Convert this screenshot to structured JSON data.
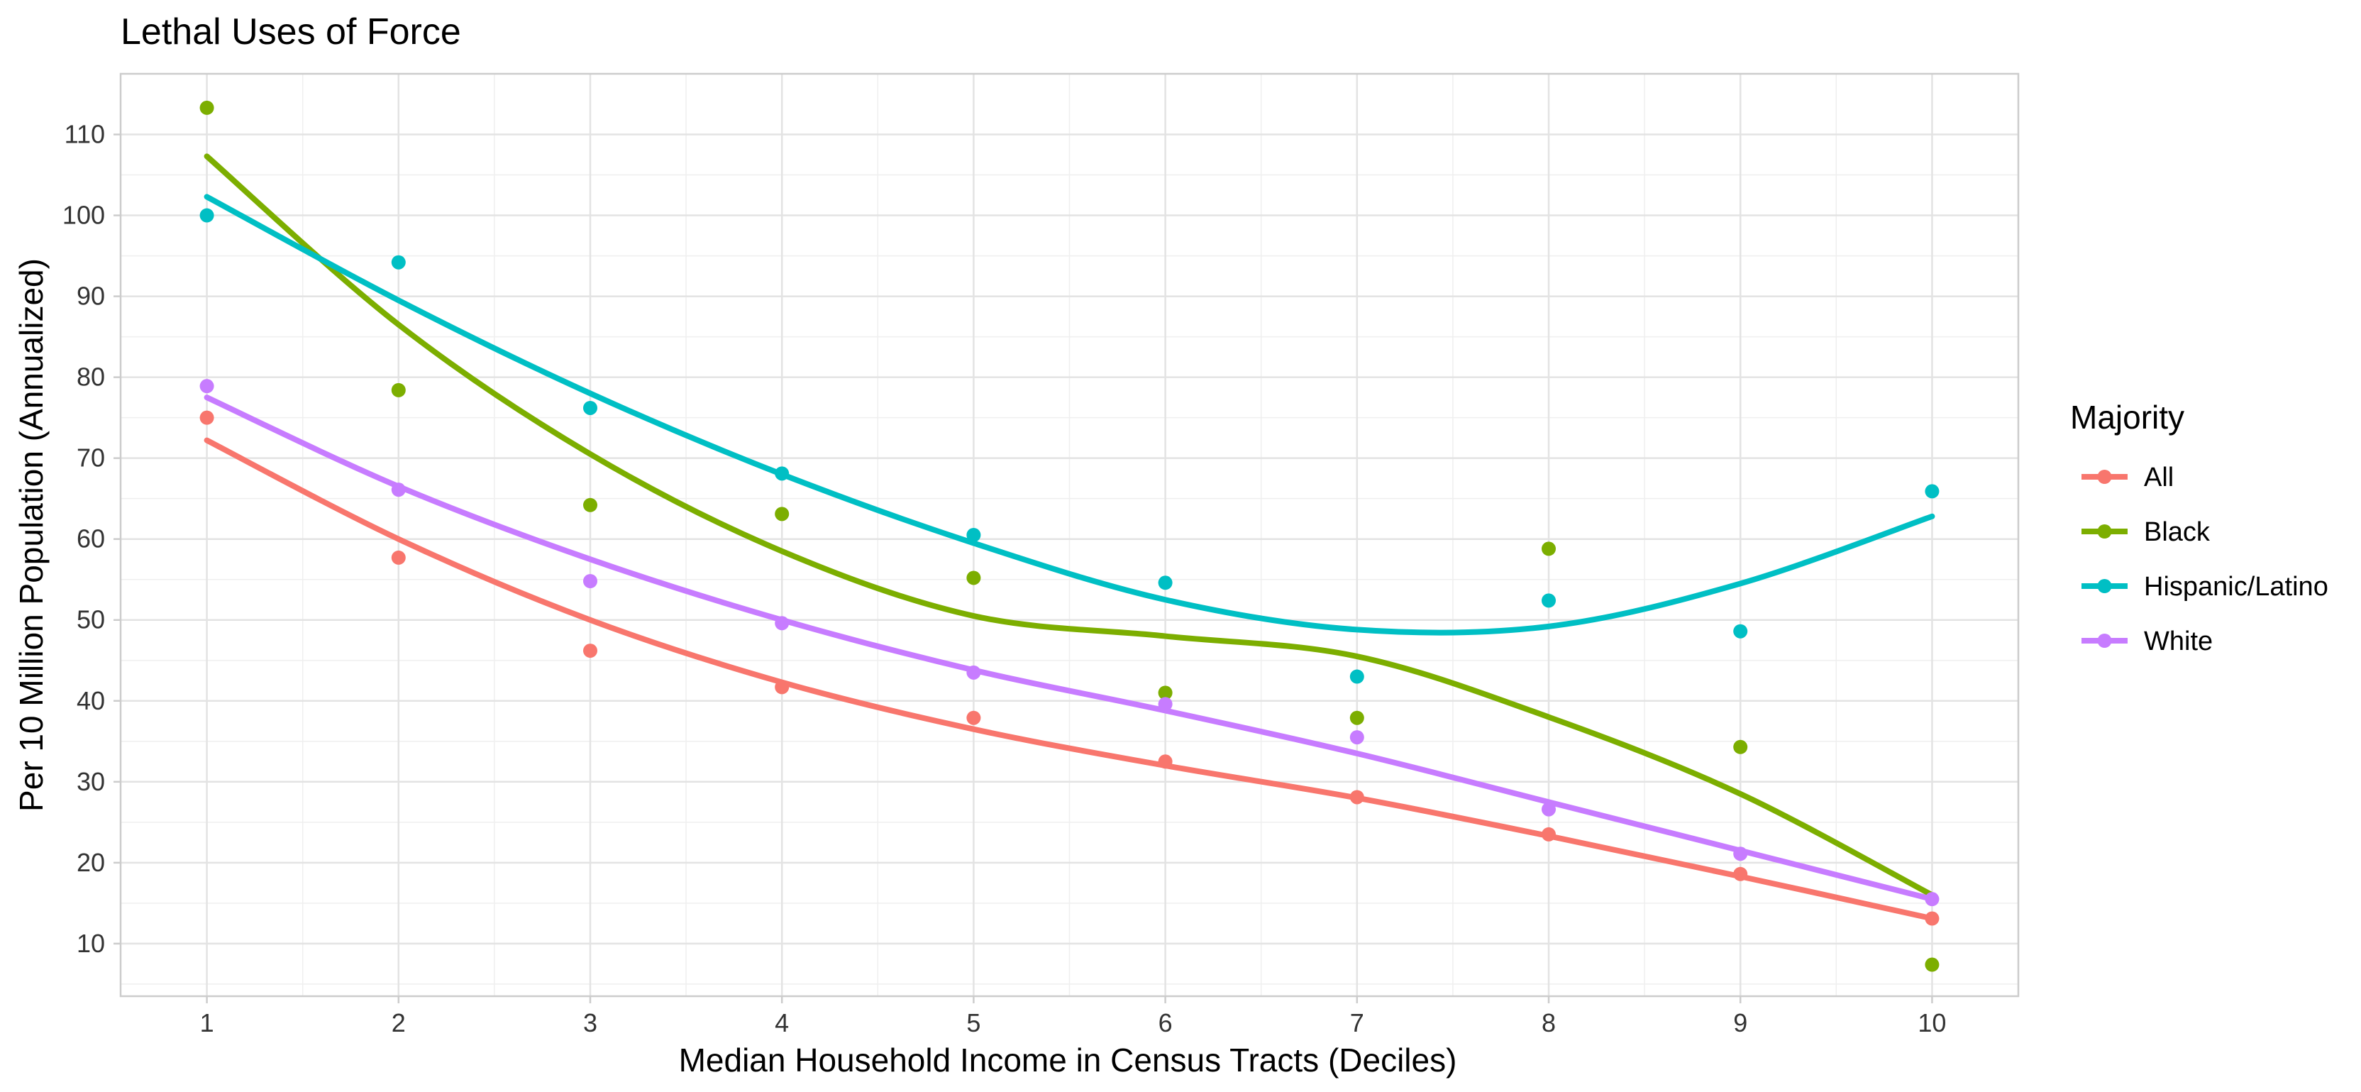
{
  "chart_data": {
    "type": "scatter",
    "title": "Lethal Uses of Force",
    "xlabel": "Median Household Income in Census Tracts (Deciles)",
    "ylabel": "Per 10 Million Population (Annualized)",
    "xlim": [
      0.55,
      10.45
    ],
    "ylim": [
      3.5,
      117.5
    ],
    "x_ticks": [
      1,
      2,
      3,
      4,
      5,
      6,
      7,
      8,
      9,
      10
    ],
    "y_ticks": [
      10,
      20,
      30,
      40,
      50,
      60,
      70,
      80,
      90,
      100,
      110
    ],
    "grid": true,
    "legend": {
      "title": "Majority",
      "position": "right"
    },
    "x": [
      1,
      2,
      3,
      4,
      5,
      6,
      7,
      8,
      9,
      10
    ],
    "series": [
      {
        "name": "All",
        "color": "#F8766D",
        "points": [
          75.0,
          57.7,
          46.2,
          41.7,
          37.9,
          32.5,
          28.1,
          23.5,
          18.6,
          13.1
        ],
        "trend": [
          72.2,
          60.0,
          50.0,
          42.3,
          36.5,
          32.0,
          28.0,
          23.3,
          18.3,
          13.1
        ]
      },
      {
        "name": "Black",
        "color": "#7CAE00",
        "points": [
          113.3,
          78.4,
          64.2,
          63.1,
          55.2,
          41.0,
          37.9,
          58.8,
          34.3,
          7.4
        ],
        "trend": [
          107.3,
          86.5,
          70.5,
          58.5,
          50.5,
          48.0,
          45.5,
          38.0,
          28.5,
          16.0
        ]
      },
      {
        "name": "Hispanic/Latino",
        "color": "#00BFC4",
        "points": [
          100.0,
          94.2,
          76.2,
          68.1,
          60.5,
          54.6,
          43.0,
          52.4,
          48.6,
          65.9
        ],
        "trend": [
          102.3,
          89.5,
          78.0,
          68.0,
          59.5,
          52.5,
          48.8,
          49.2,
          54.5,
          62.8
        ]
      },
      {
        "name": "White",
        "color": "#C77CFF",
        "points": [
          78.9,
          66.1,
          54.8,
          49.6,
          43.5,
          39.6,
          35.5,
          26.6,
          21.1,
          15.5
        ],
        "trend": [
          77.5,
          66.5,
          57.5,
          50.0,
          43.8,
          38.8,
          33.5,
          27.5,
          21.5,
          15.5
        ]
      }
    ]
  }
}
